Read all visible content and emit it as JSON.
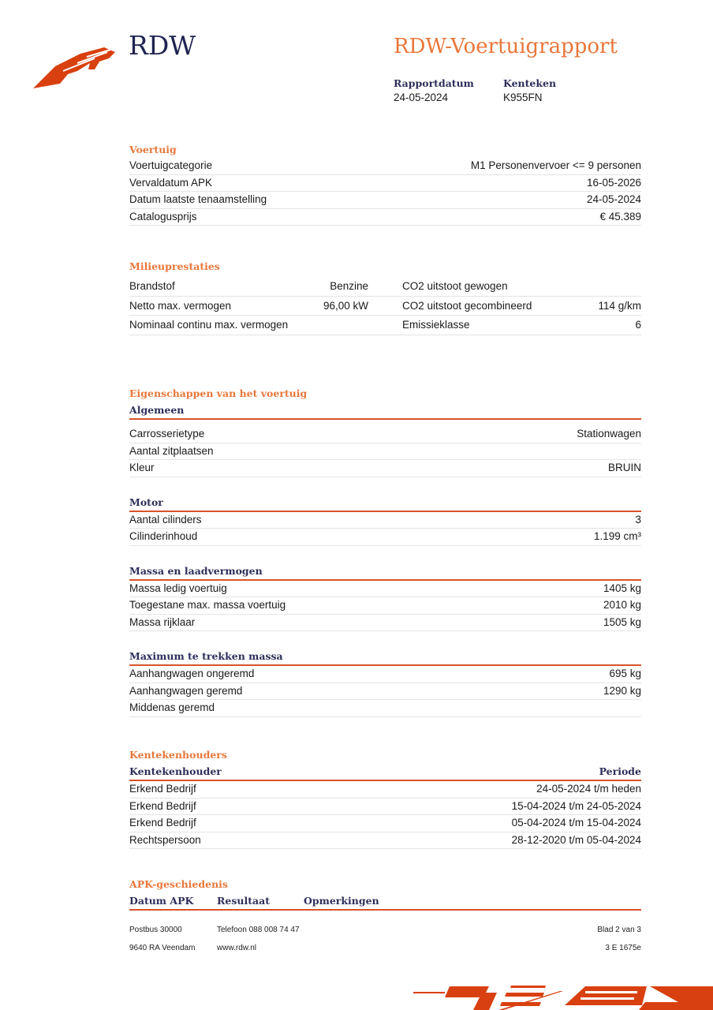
{
  "header": {
    "brand": "RDW",
    "title": "RDW-Voertuigrapport",
    "meta": [
      {
        "label": "Rapportdatum",
        "value": "24-05-2024"
      },
      {
        "label": "Kenteken",
        "value": "K955FN"
      }
    ]
  },
  "voertuig": {
    "title": "Voertuig",
    "rows": [
      [
        "Voertuigcategorie",
        "M1 Personenvervoer <= 9 personen"
      ],
      [
        "Vervaldatum APK",
        "16-05-2026"
      ],
      [
        "Datum laatste tenaamstelling",
        "24-05-2024"
      ],
      [
        "Catalogusprijs",
        "€ 45.389"
      ]
    ]
  },
  "milieu": {
    "title": "Milieuprestaties",
    "rows": [
      [
        "Brandstof",
        "Benzine",
        "CO2 uitstoot gewogen",
        ""
      ],
      [
        "Netto max. vermogen",
        "96,00 kW",
        "CO2 uitstoot gecombineerd",
        "114 g/km"
      ],
      [
        "Nominaal continu max. vermogen",
        "",
        "Emissieklasse",
        "6"
      ]
    ]
  },
  "eigenschappen": {
    "title": "Eigenschappen van het voertuig",
    "groups": [
      {
        "title": "Algemeen",
        "rows": [
          [
            "Carrosserietype",
            "Stationwagen"
          ],
          [
            "Aantal zitplaatsen",
            ""
          ],
          [
            "Kleur",
            "BRUIN"
          ]
        ]
      },
      {
        "title": "Motor",
        "rows": [
          [
            "Aantal cilinders",
            "3"
          ],
          [
            "Cilinderinhoud",
            "1.199 cm³"
          ]
        ]
      },
      {
        "title": "Massa en laadvermogen",
        "rows": [
          [
            "Massa ledig voertuig",
            "1405 kg"
          ],
          [
            "Toegestane max. massa voertuig",
            "2010 kg"
          ],
          [
            "Massa rijklaar",
            "1505 kg"
          ]
        ]
      },
      {
        "title": "Maximum te trekken massa",
        "rows": [
          [
            "Aanhangwagen ongeremd",
            "695 kg"
          ],
          [
            "Aanhangwagen geremd",
            "1290 kg"
          ],
          [
            "Middenas geremd",
            ""
          ]
        ]
      }
    ]
  },
  "kentekenhouders": {
    "title": "Kentekenhouders",
    "headers": [
      "Kentekenhouder",
      "Periode"
    ],
    "rows": [
      [
        "Erkend Bedrijf",
        "24-05-2024 t/m heden"
      ],
      [
        "Erkend Bedrijf",
        "15-04-2024 t/m 24-05-2024"
      ],
      [
        "Erkend Bedrijf",
        "05-04-2024 t/m 15-04-2024"
      ],
      [
        "Rechtspersoon",
        "28-12-2020 t/m 05-04-2024"
      ]
    ]
  },
  "apk": {
    "title": "APK-geschiedenis",
    "headers": [
      "Datum APK",
      "Resultaat",
      "Opmerkingen"
    ]
  },
  "footer": {
    "address1": "Postbus 30000",
    "address2": "9640 RA Veendam",
    "phone": "Telefoon 088 008 74 47",
    "web": "www.rdw.nl",
    "page": "Blad 2 van 3",
    "code": "3 E 1675e"
  },
  "colors": {
    "accent": "#e8773a",
    "navy": "#2c2f5a",
    "rule": "#d9532b"
  }
}
